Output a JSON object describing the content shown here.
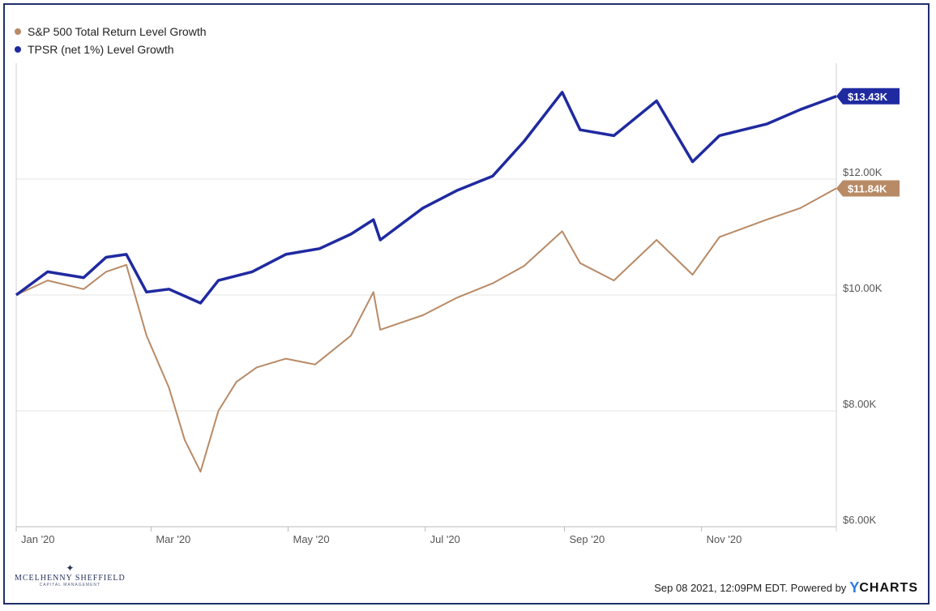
{
  "chart_data": {
    "type": "line",
    "title": "",
    "xlabel": "",
    "ylabel": "",
    "x_ticks": [
      "Jan '20",
      "Mar '20",
      "May '20",
      "Jul '20",
      "Sep '20",
      "Nov '20"
    ],
    "y_ticks": [
      "$6.00K",
      "$8.00K",
      "$10.00K",
      "$12.00K"
    ],
    "ylim": [
      6000,
      14000
    ],
    "grid": true,
    "legend_position": "top-left",
    "series": [
      {
        "name": "S&P 500 Total Return Level Growth",
        "color": "#b88a66",
        "end_label": "$11.84K",
        "points": [
          [
            "2020-01-01",
            10000
          ],
          [
            "2020-01-15",
            10250
          ],
          [
            "2020-01-31",
            10100
          ],
          [
            "2020-02-10",
            10400
          ],
          [
            "2020-02-19",
            10520
          ],
          [
            "2020-02-28",
            9300
          ],
          [
            "2020-03-09",
            8400
          ],
          [
            "2020-03-16",
            7500
          ],
          [
            "2020-03-23",
            6950
          ],
          [
            "2020-03-31",
            8000
          ],
          [
            "2020-04-08",
            8500
          ],
          [
            "2020-04-17",
            8750
          ],
          [
            "2020-04-30",
            8900
          ],
          [
            "2020-05-13",
            8800
          ],
          [
            "2020-05-29",
            9300
          ],
          [
            "2020-06-08",
            10050
          ],
          [
            "2020-06-11",
            9400
          ],
          [
            "2020-06-30",
            9650
          ],
          [
            "2020-07-15",
            9950
          ],
          [
            "2020-07-31",
            10200
          ],
          [
            "2020-08-14",
            10500
          ],
          [
            "2020-08-31",
            11100
          ],
          [
            "2020-09-08",
            10550
          ],
          [
            "2020-09-23",
            10250
          ],
          [
            "2020-10-12",
            10950
          ],
          [
            "2020-10-28",
            10350
          ],
          [
            "2020-11-09",
            11000
          ],
          [
            "2020-11-30",
            11300
          ],
          [
            "2020-12-15",
            11500
          ],
          [
            "2020-12-31",
            11840
          ]
        ]
      },
      {
        "name": "TPSR (net 1%) Level Growth",
        "color": "#1f2aa0",
        "end_label": "$13.43K",
        "points": [
          [
            "2020-01-01",
            10000
          ],
          [
            "2020-01-15",
            10400
          ],
          [
            "2020-01-31",
            10300
          ],
          [
            "2020-02-10",
            10650
          ],
          [
            "2020-02-19",
            10700
          ],
          [
            "2020-02-28",
            10050
          ],
          [
            "2020-03-09",
            10100
          ],
          [
            "2020-03-23",
            9860
          ],
          [
            "2020-03-31",
            10250
          ],
          [
            "2020-04-15",
            10400
          ],
          [
            "2020-04-30",
            10700
          ],
          [
            "2020-05-15",
            10800
          ],
          [
            "2020-05-29",
            11050
          ],
          [
            "2020-06-08",
            11300
          ],
          [
            "2020-06-11",
            10950
          ],
          [
            "2020-06-30",
            11500
          ],
          [
            "2020-07-15",
            11800
          ],
          [
            "2020-07-31",
            12050
          ],
          [
            "2020-08-14",
            12650
          ],
          [
            "2020-08-31",
            13500
          ],
          [
            "2020-09-08",
            12850
          ],
          [
            "2020-09-23",
            12750
          ],
          [
            "2020-10-12",
            13350
          ],
          [
            "2020-10-28",
            12300
          ],
          [
            "2020-11-09",
            12750
          ],
          [
            "2020-11-30",
            12950
          ],
          [
            "2020-12-15",
            13200
          ],
          [
            "2020-12-31",
            13430
          ]
        ]
      }
    ]
  },
  "footer": {
    "timestamp": "Sep 08 2021, 12:09PM EDT. Powered by",
    "brand_y": "Y",
    "brand_rest": "CHARTS"
  },
  "logo": {
    "main": "MCELHENNY SHEFFIELD",
    "sub": "CAPITAL MANAGEMENT"
  }
}
